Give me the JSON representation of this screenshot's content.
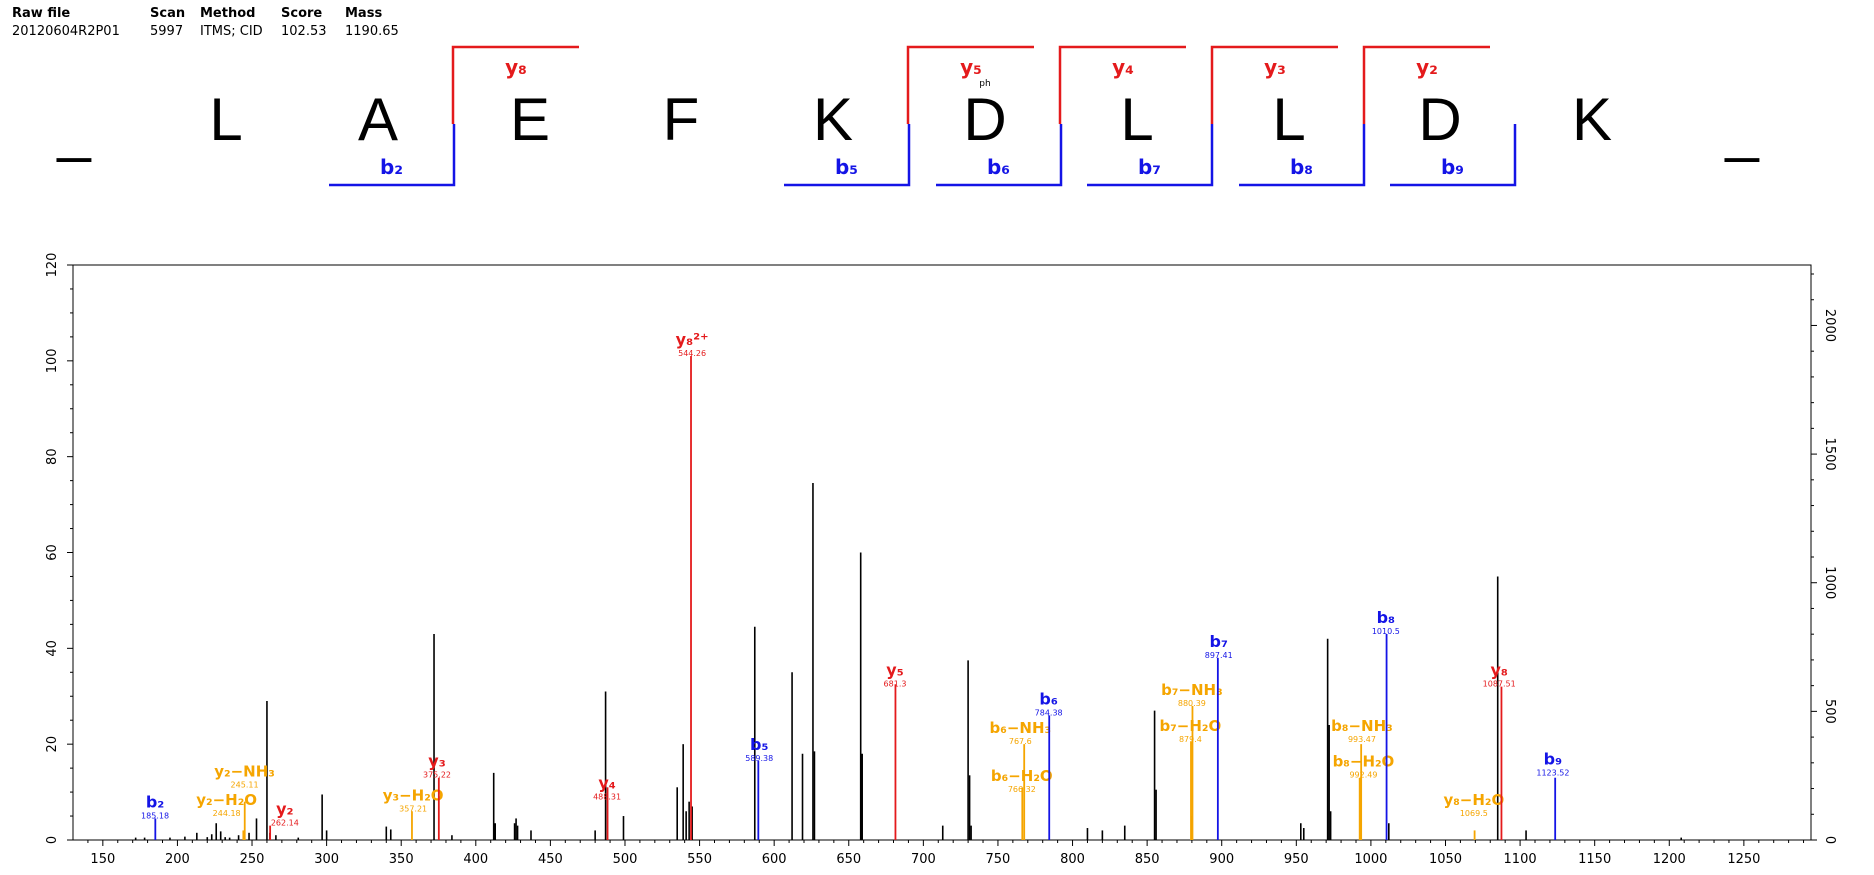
{
  "header": {
    "raw_file_label": "Raw file",
    "raw_file": "20120604R2P01",
    "scan_label": "Scan",
    "scan": "5997",
    "method_label": "Method",
    "method": "ITMS; CID",
    "score_label": "Score",
    "score": "102.53",
    "mass_label": "Mass",
    "mass": "1190.65"
  },
  "sequence": {
    "residues": [
      "_",
      "L",
      "A",
      "E",
      "F",
      "K",
      "D",
      "L",
      "L",
      "D",
      "K",
      "_"
    ],
    "ph_label": "ph",
    "y_brackets": [
      "y8",
      "y5",
      "y4",
      "y3",
      "y2"
    ],
    "b_brackets": [
      "b2",
      "b5",
      "b6",
      "b7",
      "b8",
      "b9"
    ]
  },
  "colors": {
    "y": "#e41a1c",
    "b": "#1414e6",
    "loss": "#f5a500",
    "unassigned": "#000000"
  },
  "chart_data": {
    "type": "bar",
    "xlabel": "",
    "ylabel": "",
    "xlim": [
      130,
      1295
    ],
    "ylim": [
      0,
      120
    ],
    "x_ticks": [
      150,
      200,
      250,
      300,
      350,
      400,
      450,
      500,
      550,
      600,
      650,
      700,
      750,
      800,
      850,
      900,
      950,
      1000,
      1050,
      1100,
      1150,
      1200,
      1250
    ],
    "y_ticks": [
      0,
      20,
      40,
      60,
      80,
      100,
      120
    ],
    "y2_ticks": [
      0,
      500,
      1000,
      1500,
      2000
    ],
    "grid": false,
    "peaks": [
      {
        "x": 172,
        "y": 0.5,
        "t": "n"
      },
      {
        "x": 178,
        "y": 0.5,
        "t": "n"
      },
      {
        "x": 195,
        "y": 0.5,
        "t": "n"
      },
      {
        "x": 205,
        "y": 0.7,
        "t": "n"
      },
      {
        "x": 213,
        "y": 1.5,
        "t": "n"
      },
      {
        "x": 220,
        "y": 0.6,
        "t": "n"
      },
      {
        "x": 223,
        "y": 1.2,
        "t": "n"
      },
      {
        "x": 226,
        "y": 3.5,
        "t": "n"
      },
      {
        "x": 229,
        "y": 1.8,
        "t": "n"
      },
      {
        "x": 232,
        "y": 0.6,
        "t": "n"
      },
      {
        "x": 235,
        "y": 0.5,
        "t": "n"
      },
      {
        "x": 241,
        "y": 1.0,
        "t": "n"
      },
      {
        "x": 248,
        "y": 1.5,
        "t": "n"
      },
      {
        "x": 253,
        "y": 4.5,
        "t": "n"
      },
      {
        "x": 260,
        "y": 29,
        "t": "n"
      },
      {
        "x": 262,
        "y": 1.5,
        "t": "n"
      },
      {
        "x": 266,
        "y": 1.0,
        "t": "n"
      },
      {
        "x": 281,
        "y": 0.5,
        "t": "n"
      },
      {
        "x": 297,
        "y": 9.5,
        "t": "n"
      },
      {
        "x": 300,
        "y": 2,
        "t": "n"
      },
      {
        "x": 340,
        "y": 2.8,
        "t": "n"
      },
      {
        "x": 343,
        "y": 2.2,
        "t": "n"
      },
      {
        "x": 372,
        "y": 43,
        "t": "n"
      },
      {
        "x": 384,
        "y": 1,
        "t": "n"
      },
      {
        "x": 412,
        "y": 14,
        "t": "n"
      },
      {
        "x": 413,
        "y": 3.5,
        "t": "n"
      },
      {
        "x": 426,
        "y": 3.5,
        "t": "n"
      },
      {
        "x": 427,
        "y": 4.5,
        "t": "n"
      },
      {
        "x": 428,
        "y": 3,
        "t": "n"
      },
      {
        "x": 437,
        "y": 2,
        "t": "n"
      },
      {
        "x": 480,
        "y": 2,
        "t": "n"
      },
      {
        "x": 487,
        "y": 31,
        "t": "n"
      },
      {
        "x": 499,
        "y": 5,
        "t": "n"
      },
      {
        "x": 535,
        "y": 11,
        "t": "n"
      },
      {
        "x": 539,
        "y": 20,
        "t": "n"
      },
      {
        "x": 541,
        "y": 6,
        "t": "n"
      },
      {
        "x": 543,
        "y": 8,
        "t": "n"
      },
      {
        "x": 545,
        "y": 7,
        "t": "n"
      },
      {
        "x": 587,
        "y": 44.5,
        "t": "n"
      },
      {
        "x": 612,
        "y": 35,
        "t": "n"
      },
      {
        "x": 619,
        "y": 18,
        "t": "n"
      },
      {
        "x": 626,
        "y": 74.5,
        "t": "n"
      },
      {
        "x": 627,
        "y": 18.5,
        "t": "n"
      },
      {
        "x": 658,
        "y": 60,
        "t": "n"
      },
      {
        "x": 659,
        "y": 18,
        "t": "n"
      },
      {
        "x": 713,
        "y": 3,
        "t": "n"
      },
      {
        "x": 730,
        "y": 37.5,
        "t": "n"
      },
      {
        "x": 731,
        "y": 13.5,
        "t": "n"
      },
      {
        "x": 732,
        "y": 3,
        "t": "n"
      },
      {
        "x": 810,
        "y": 2.5,
        "t": "n"
      },
      {
        "x": 820,
        "y": 2,
        "t": "n"
      },
      {
        "x": 835,
        "y": 3,
        "t": "n"
      },
      {
        "x": 855,
        "y": 27,
        "t": "n"
      },
      {
        "x": 856,
        "y": 10.5,
        "t": "n"
      },
      {
        "x": 880,
        "y": 5,
        "t": "n"
      },
      {
        "x": 953,
        "y": 3.5,
        "t": "n"
      },
      {
        "x": 955,
        "y": 2.5,
        "t": "n"
      },
      {
        "x": 971,
        "y": 42,
        "t": "n"
      },
      {
        "x": 972,
        "y": 24,
        "t": "n"
      },
      {
        "x": 973,
        "y": 6,
        "t": "n"
      },
      {
        "x": 1012,
        "y": 3.5,
        "t": "n"
      },
      {
        "x": 1085,
        "y": 55,
        "t": "n"
      },
      {
        "x": 1104,
        "y": 2,
        "t": "n"
      },
      {
        "x": 1208,
        "y": 0.5,
        "t": "n"
      }
    ],
    "annotations": [
      {
        "x": 185.18,
        "y": 4.5,
        "t": "b",
        "name": "b2",
        "mz": "185.18",
        "lx": 185,
        "ly": 4.5
      },
      {
        "x": 245.11,
        "y": 8,
        "t": "o",
        "name": "y2-NH3",
        "mz": "245.11",
        "lx": 245,
        "ly": 11
      },
      {
        "x": 244.18,
        "y": 2,
        "t": "o",
        "name": "y2-H2O",
        "mz": "244.18",
        "lx": 233,
        "ly": 5
      },
      {
        "x": 262.14,
        "y": 3,
        "t": "r",
        "name": "y2",
        "mz": "262.14",
        "lx": 272,
        "ly": 3
      },
      {
        "x": 357.21,
        "y": 6,
        "t": "o",
        "name": "y3-H2O",
        "mz": "357.21",
        "lx": 358,
        "ly": 6
      },
      {
        "x": 375.22,
        "y": 13,
        "t": "r",
        "name": "y3",
        "mz": "375.22",
        "lx": 374,
        "ly": 13
      },
      {
        "x": 488.31,
        "y": 11,
        "t": "r",
        "name": "y4",
        "mz": "488.31",
        "lx": 488,
        "ly": 8.5
      },
      {
        "x": 544.26,
        "y": 101,
        "t": "r",
        "name": "y8 2+",
        "mz": "544.26",
        "lx": 545,
        "ly": 101
      },
      {
        "x": 589.38,
        "y": 16.5,
        "t": "b",
        "name": "b5",
        "mz": "589.38",
        "lx": 590,
        "ly": 16.5
      },
      {
        "x": 681.3,
        "y": 32.5,
        "t": "r",
        "name": "y5",
        "mz": "681.3",
        "lx": 681,
        "ly": 32
      },
      {
        "x": 767.6,
        "y": 20,
        "t": "o",
        "name": "b6-NH3",
        "mz": "767.6",
        "lx": 765,
        "ly": 20
      },
      {
        "x": 766.32,
        "y": 11,
        "t": "o",
        "name": "b6-H2O",
        "mz": "766.32",
        "lx": 766,
        "ly": 10
      },
      {
        "x": 784.38,
        "y": 26,
        "t": "b",
        "name": "b6",
        "mz": "784.38",
        "lx": 784,
        "ly": 26
      },
      {
        "x": 880.39,
        "y": 28,
        "t": "o",
        "name": "b7-NH3",
        "mz": "880.39",
        "lx": 880,
        "ly": 28
      },
      {
        "x": 879.4,
        "y": 20.5,
        "t": "o",
        "name": "b7-H2O",
        "mz": "879.4",
        "lx": 879,
        "ly": 20.5
      },
      {
        "x": 897.41,
        "y": 38,
        "t": "b",
        "name": "b7",
        "mz": "897.41",
        "lx": 898,
        "ly": 38
      },
      {
        "x": 993.47,
        "y": 20,
        "t": "o",
        "name": "b8-NH3",
        "mz": "993.47",
        "lx": 994,
        "ly": 20.5
      },
      {
        "x": 992.49,
        "y": 13,
        "t": "o",
        "name": "b8-H2O",
        "mz": "992.49",
        "lx": 995,
        "ly": 13
      },
      {
        "x": 1010.5,
        "y": 43,
        "t": "b",
        "name": "b8",
        "mz": "1010.5",
        "lx": 1010,
        "ly": 43
      },
      {
        "x": 1069.5,
        "y": 2,
        "t": "o",
        "name": "y8-H2O",
        "mz": "1069.5",
        "lx": 1069,
        "ly": 5
      },
      {
        "x": 1087.51,
        "y": 32,
        "t": "r",
        "name": "y8",
        "mz": "1087.51",
        "lx": 1086,
        "ly": 32
      },
      {
        "x": 1123.52,
        "y": 13,
        "t": "b",
        "name": "b9",
        "mz": "1123.52",
        "lx": 1122,
        "ly": 13.5
      }
    ]
  }
}
